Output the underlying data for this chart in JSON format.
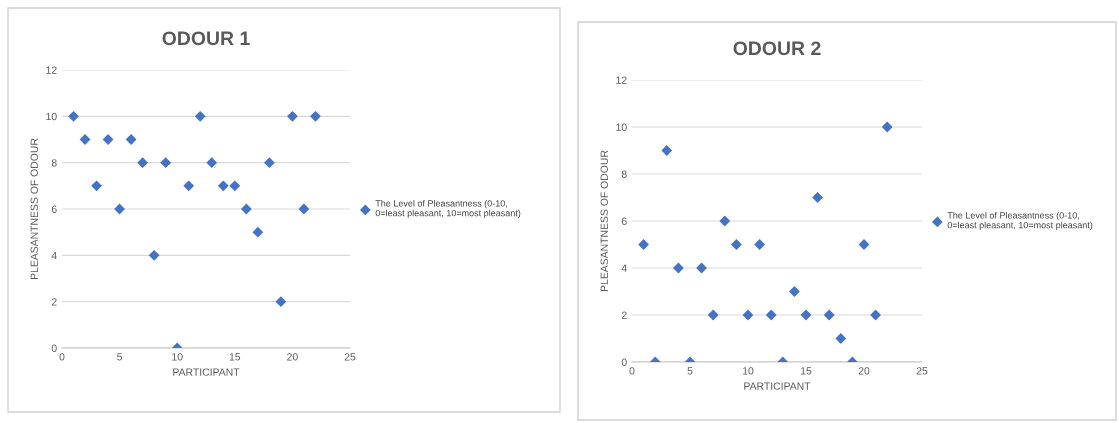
{
  "chart_data": [
    {
      "type": "scatter",
      "title": "ODOUR 1",
      "xlabel": "PARTICIPANT",
      "ylabel": "PLEASANTNESS OF ODOUR",
      "x": [
        1,
        2,
        3,
        4,
        5,
        6,
        7,
        8,
        9,
        10,
        11,
        12,
        13,
        14,
        15,
        16,
        17,
        18,
        19,
        20,
        21,
        22
      ],
      "series": [
        {
          "name": "The Level of Pleasantness (0-10,\n0=least pleasant, 10=most pleasant)",
          "color": "#4472c4",
          "values": [
            10,
            9,
            7,
            9,
            6,
            9,
            8,
            4,
            8,
            0,
            7,
            10,
            8,
            7,
            7,
            6,
            5,
            8,
            2,
            10,
            6,
            10
          ]
        }
      ],
      "xlim": [
        0,
        25
      ],
      "xticks": [
        0,
        5,
        10,
        15,
        20,
        25
      ],
      "ylim": [
        0,
        12
      ],
      "yticks": [
        0,
        2,
        4,
        6,
        8,
        10,
        12
      ],
      "grid": "y",
      "legend": "right",
      "marker": "diamond"
    },
    {
      "type": "scatter",
      "title": "ODOUR 2",
      "xlabel": "PARTICIPANT",
      "ylabel": "PLEASANTNESS OF ODOUR",
      "x": [
        1,
        2,
        3,
        4,
        5,
        6,
        7,
        8,
        9,
        10,
        11,
        12,
        13,
        14,
        15,
        16,
        17,
        18,
        19,
        20,
        21,
        22
      ],
      "series": [
        {
          "name": "The Level of Pleasantness (0-10,\n0=least pleasant, 10=most pleasant)",
          "color": "#4472c4",
          "values": [
            5,
            0,
            9,
            4,
            0,
            4,
            2,
            6,
            5,
            2,
            5,
            2,
            0,
            3,
            2,
            7,
            2,
            1,
            0,
            5,
            2,
            10
          ]
        }
      ],
      "xlim": [
        0,
        25
      ],
      "xticks": [
        0,
        5,
        10,
        15,
        20,
        25
      ],
      "ylim": [
        0,
        12
      ],
      "yticks": [
        0,
        2,
        4,
        6,
        8,
        10,
        12
      ],
      "grid": "y",
      "legend": "right",
      "marker": "diamond"
    }
  ]
}
